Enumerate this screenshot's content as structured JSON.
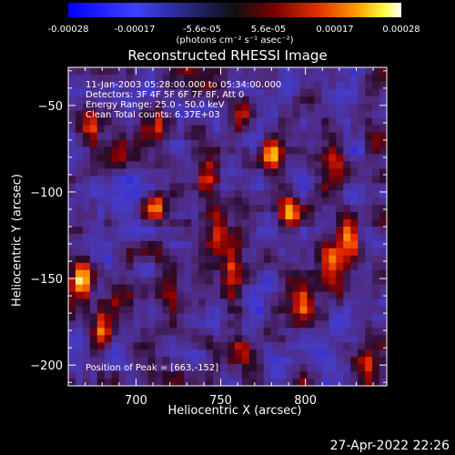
{
  "colorbar": {
    "ticks": [
      "-0.00028",
      "-0.00017",
      "-5.6e-05",
      "5.6e-05",
      "0.00017",
      "0.00028"
    ],
    "units": "(photons cm⁻² s⁻¹ asec⁻²)",
    "range": [
      -0.00028,
      0.00028
    ]
  },
  "chart_data": {
    "type": "heatmap",
    "title": "Reconstructed RHESSI Image",
    "xlabel": "Heliocentric X (arcsec)",
    "ylabel": "Heliocentric Y (arcsec)",
    "xlim": [
      660,
      848
    ],
    "ylim": [
      -212,
      -28
    ],
    "xticks": [
      700,
      750,
      800
    ],
    "yticks": [
      -50,
      -100,
      -150,
      -200
    ],
    "grid": false,
    "annotations": [
      "11-Jan-2003 05:28:00.000 to 05:34:00.000",
      "Detectors: 3F 4F 5F 6F 7F 8F, Att 0",
      "Energy Range: 25.0 - 50.0 keV",
      "Clean     Total counts: 6.37E+03",
      "Position of Peak = [663,-152]"
    ],
    "peak": [
      663,
      -152
    ],
    "sources": [
      {
        "x": 668,
        "y": -148,
        "amp": 1.0
      },
      {
        "x": 673,
        "y": -60,
        "amp": 0.55
      },
      {
        "x": 690,
        "y": -72,
        "amp": 0.45
      },
      {
        "x": 702,
        "y": -68,
        "amp": 0.4
      },
      {
        "x": 712,
        "y": -108,
        "amp": 0.75
      },
      {
        "x": 714,
        "y": -64,
        "amp": 0.55
      },
      {
        "x": 720,
        "y": -160,
        "amp": 0.5
      },
      {
        "x": 742,
        "y": -90,
        "amp": 0.7
      },
      {
        "x": 748,
        "y": -125,
        "amp": 0.6
      },
      {
        "x": 757,
        "y": -148,
        "amp": 0.55
      },
      {
        "x": 762,
        "y": -58,
        "amp": 0.6
      },
      {
        "x": 780,
        "y": -80,
        "amp": 0.7
      },
      {
        "x": 790,
        "y": -110,
        "amp": 0.85
      },
      {
        "x": 798,
        "y": -165,
        "amp": 0.65
      },
      {
        "x": 815,
        "y": -140,
        "amp": 0.55
      },
      {
        "x": 818,
        "y": -85,
        "amp": 0.6
      },
      {
        "x": 826,
        "y": -125,
        "amp": 0.85
      },
      {
        "x": 842,
        "y": -70,
        "amp": 0.45
      },
      {
        "x": 680,
        "y": -180,
        "amp": 0.55
      },
      {
        "x": 760,
        "y": -196,
        "amp": 0.4
      },
      {
        "x": 836,
        "y": -195,
        "amp": 0.45
      }
    ]
  },
  "footer": {
    "timestamp": "27-Apr-2022 22:26"
  }
}
